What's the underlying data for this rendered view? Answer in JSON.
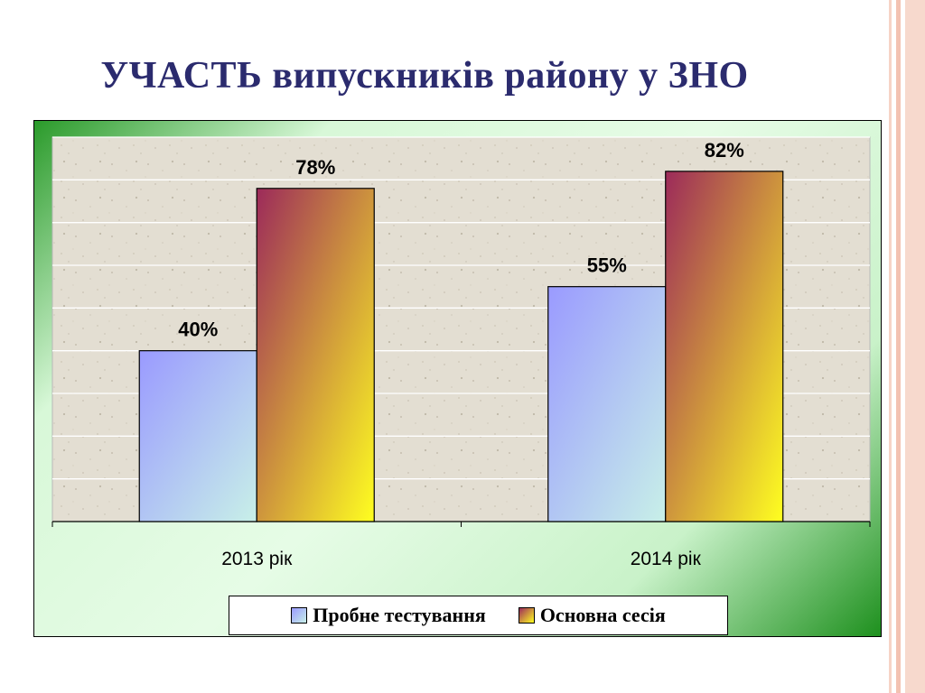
{
  "slide": {
    "title": "УЧАСТЬ випускників району у ЗНО"
  },
  "colors": {
    "series1": [
      "#9a9aff",
      "#c8f0e8"
    ],
    "series2": [
      "#9c2a5a",
      "#ffff20"
    ],
    "frame": "#f3c7b8"
  },
  "chart_data": {
    "type": "bar",
    "title": "",
    "xlabel": "",
    "ylabel": "",
    "ylim": [
      0,
      90
    ],
    "grid": true,
    "legend_placement": "bottom",
    "categories": [
      "2013 рік",
      "2014 рік"
    ],
    "series": [
      {
        "name": "Пробне тестування",
        "values": [
          40,
          55
        ],
        "labels": [
          "40%",
          "55%"
        ]
      },
      {
        "name": "Основна сесія",
        "values": [
          78,
          82
        ],
        "labels": [
          "78%",
          "82%"
        ]
      }
    ]
  }
}
